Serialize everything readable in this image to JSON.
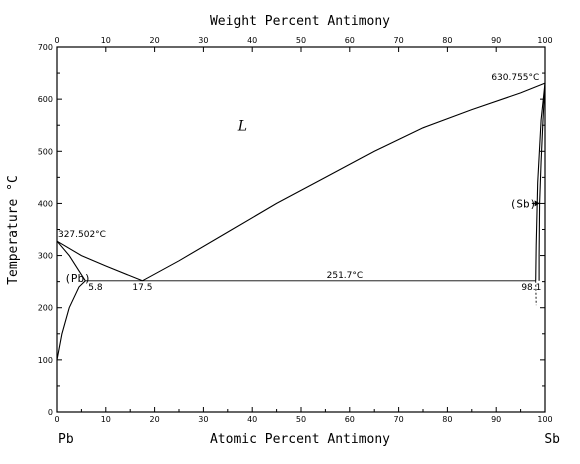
{
  "chart_data": {
    "type": "line",
    "title": "",
    "top_axis": {
      "label": "Weight Percent Antimony",
      "ticks": [
        "0",
        "10",
        "20",
        "30",
        "40",
        "50",
        "60",
        "70",
        "80",
        "90",
        "100"
      ],
      "positions_at_percent": [
        0,
        10,
        20,
        30,
        40,
        50,
        60,
        70,
        80,
        90,
        100
      ]
    },
    "xlabel": "Atomic Percent Antimony",
    "ylabel": "Temperature °C",
    "xlim": [
      0,
      100
    ],
    "ylim": [
      0,
      700
    ],
    "x_ticks": [
      "0",
      "10",
      "20",
      "30",
      "40",
      "50",
      "60",
      "70",
      "80",
      "90",
      "100"
    ],
    "y_ticks": [
      "0",
      "100",
      "200",
      "300",
      "400",
      "500",
      "600",
      "700"
    ],
    "grid": false,
    "element_left": "Pb",
    "element_right": "Sb",
    "series": [
      {
        "values": [
          [
            0,
            327.5
          ],
          [
            5,
            300
          ],
          [
            10,
            280
          ],
          [
            17.5,
            251.7
          ]
        ]
      },
      {
        "values": [
          [
            17.5,
            251.7
          ],
          [
            25,
            290
          ],
          [
            35,
            345
          ],
          [
            45,
            400
          ],
          [
            55,
            450
          ],
          [
            65,
            500
          ],
          [
            75,
            545
          ],
          [
            85,
            580
          ],
          [
            95,
            612
          ],
          [
            100,
            630.8
          ]
        ]
      },
      {
        "values": [
          [
            5.8,
            251.7
          ],
          [
            98.1,
            251.7
          ]
        ]
      },
      {
        "values": [
          [
            0,
            327.5
          ],
          [
            2.5,
            300
          ],
          [
            5.8,
            251.7
          ]
        ]
      },
      {
        "values": [
          [
            0,
            100
          ],
          [
            1,
            150
          ],
          [
            2.5,
            200
          ],
          [
            4.5,
            240
          ],
          [
            5.8,
            251.7
          ]
        ]
      },
      {
        "values": [
          [
            98.1,
            251.7
          ],
          [
            98.2,
            320
          ],
          [
            98.5,
            440
          ],
          [
            99.2,
            560
          ],
          [
            100,
            630.8
          ]
        ]
      },
      {
        "values": [
          [
            100,
            630.8
          ],
          [
            99.6,
            560
          ],
          [
            99.2,
            480
          ],
          [
            98.9,
            400
          ],
          [
            98.8,
            300
          ],
          [
            98.8,
            251.7
          ]
        ]
      }
    ],
    "annotations": [
      {
        "text": "327.502°C",
        "x": 0.2,
        "y": 327.5
      },
      {
        "text": "630.755°C",
        "x": 89,
        "y": 630.8
      },
      {
        "text": "251.7°C",
        "x": 59,
        "y": 251.7
      },
      {
        "text": "5.8",
        "x": 5.8,
        "y": 251.7
      },
      {
        "text": "17.5",
        "x": 17.5,
        "y": 251.7
      },
      {
        "text": "98.1",
        "x": 97.2,
        "y": 251.7
      },
      {
        "text": "(Pb)",
        "x": 1.5,
        "y": 255
      },
      {
        "text": "(Sb)",
        "x": 95.5,
        "y": 400
      },
      {
        "text": "L",
        "x": 38,
        "y": 540
      }
    ]
  }
}
